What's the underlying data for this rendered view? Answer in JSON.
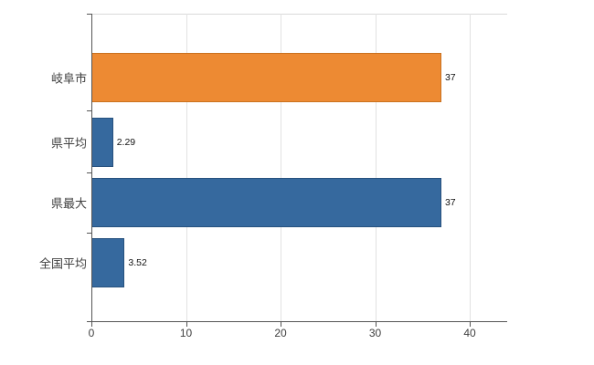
{
  "chart_data": {
    "type": "bar",
    "orientation": "horizontal",
    "title": "",
    "xlabel": "",
    "ylabel": "",
    "categories": [
      "岐阜市",
      "県平均",
      "県最大",
      "全国平均"
    ],
    "values": [
      37,
      2.29,
      37,
      3.52
    ],
    "value_labels": [
      "37",
      "2.29",
      "37",
      "3.52"
    ],
    "bar_colors": [
      "#ED8A33",
      "#36699E",
      "#36699E",
      "#36699E"
    ],
    "bar_border_colors": [
      "#c9711f",
      "#27517e",
      "#27517e",
      "#27517e"
    ],
    "x_ticks": [
      0,
      10,
      20,
      30,
      40
    ],
    "x_tick_labels": [
      "0",
      "10",
      "20",
      "30",
      "40"
    ],
    "xlim": [
      0,
      44
    ],
    "grid": "vertical",
    "legend": "none",
    "background_color": "#ffffff",
    "axis_color": "#555555",
    "gridline_color": "#e2e2e2"
  }
}
